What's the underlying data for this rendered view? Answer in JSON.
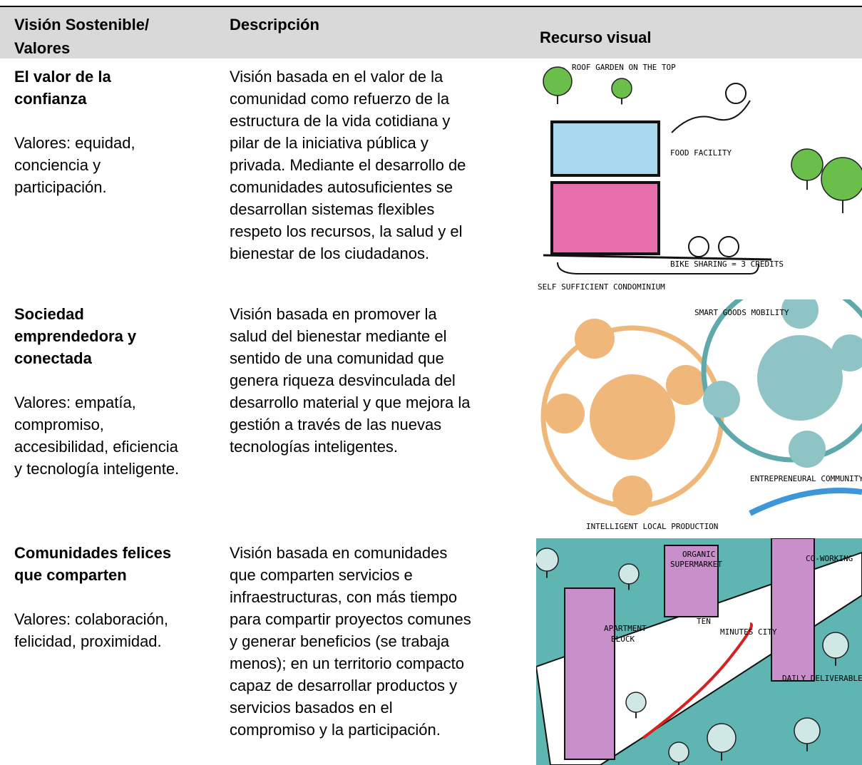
{
  "header": {
    "col1": [
      "Visión Sostenible/",
      "Valores"
    ],
    "col2": "Descripción",
    "col3": "Recurso visual"
  },
  "rows": [
    {
      "title": [
        "El valor de la",
        "confianza"
      ],
      "values": [
        "Valores: equidad,",
        "conciencia y",
        "participación."
      ],
      "description": [
        "Visión basada en el valor de la",
        "comunidad como refuerzo de la",
        "estructura de la vida cotidiana y",
        "pilar de la iniciativa pública y",
        "privada. Mediante el desarrollo de",
        "comunidades autosuficientes se",
        "desarrollan sistemas flexibles",
        "respeto los recursos, la salud y el",
        "bienestar de los ciudadanos."
      ],
      "illustration": {
        "labels": [
          "ROOF GARDEN ON THE TOP",
          "FOOD FACILITY",
          "BIKE SHARING = 3 CREDITS",
          "SELF SUFFICIENT CONDOMINIUM"
        ]
      }
    },
    {
      "title": [
        "Sociedad",
        "emprendedora y",
        "conectada"
      ],
      "values": [
        "Valores: empatía,",
        "compromiso,",
        "accesibilidad, eficiencia",
        "y tecnología inteligente."
      ],
      "description": [
        "Visión basada en promover la",
        "salud del bienestar mediante el",
        "sentido de una comunidad que",
        "genera riqueza desvinculada del",
        "desarrollo material y que mejora la",
        "gestión a través de las nuevas",
        "tecnologías inteligentes."
      ],
      "illustration": {
        "labels": [
          "SMART GOODS MOBILITY",
          "ENTREPRENEURAL COMMUNITY",
          "INTELLIGENT LOCAL PRODUCTION"
        ]
      }
    },
    {
      "title": [
        "Comunidades felices",
        "que comparten"
      ],
      "values": [
        "Valores: colaboración,",
        "felicidad, proximidad."
      ],
      "description": [
        "Visión basada en comunidades",
        "que comparten servicios e",
        "infraestructuras, con más tiempo",
        "para compartir proyectos comunes",
        "y generar beneficios (se trabaja",
        "menos); en un territorio compacto",
        "capaz de desarrollar productos y",
        "servicios basados en el",
        "compromiso y la participación."
      ],
      "illustration": {
        "labels": [
          "ORGANIC",
          "SUPERMARKET",
          "CO-WORKING",
          "APARTMENT",
          "BLOCK",
          "TEN",
          "MINUTES CITY",
          "DAILY DELIVERABLES"
        ]
      }
    }
  ]
}
